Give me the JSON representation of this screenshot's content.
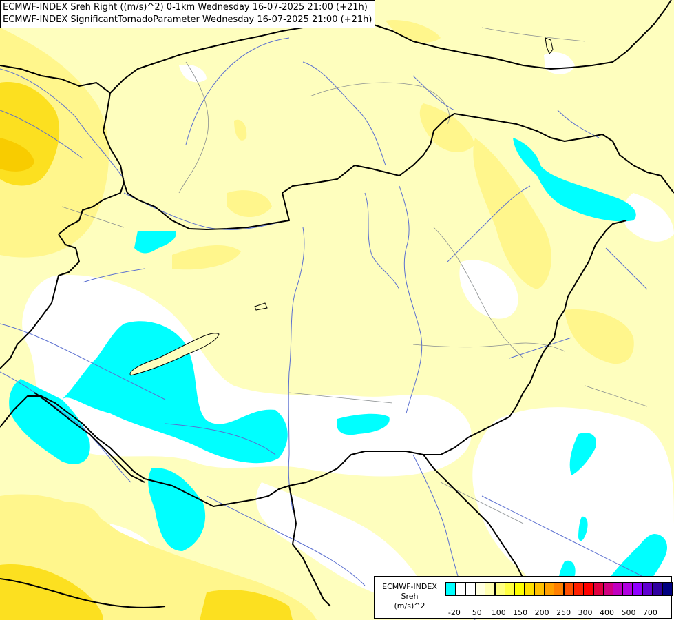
{
  "title_lines": [
    "ECMWF-INDEX Sreh Right ((m/s)^2) 0-1km Wednesday 16-07-2025 21:00 (+21h)",
    "ECMWF-INDEX SignificantTornadoParameter Wednesday 16-07-2025 21:00 (+21h)"
  ],
  "legend": {
    "title_lines": [
      "ECMWF-INDEX",
      "Sreh",
      "(m/s)^2"
    ],
    "swatch_colors": [
      "#00ffff",
      "#ffffff",
      "#ffffff",
      "#ffffe0",
      "#ffffb0",
      "#ffff80",
      "#ffff40",
      "#ffff00",
      "#ffe000",
      "#ffc000",
      "#ffa000",
      "#ff8000",
      "#ff5000",
      "#ff2000",
      "#ff0000",
      "#e00040",
      "#d00080",
      "#c000c0",
      "#b000e0",
      "#9000ff",
      "#6000d0",
      "#3000a0",
      "#000080"
    ],
    "tick_labels": [
      "-20",
      "50",
      "100",
      "150",
      "200",
      "250",
      "300",
      "400",
      "500",
      "700"
    ]
  },
  "colors": {
    "land": "#fefebe",
    "cyan_field": "#00ffff",
    "white_field": "#ffffff",
    "yellow_field": "#fff68c",
    "gold_field": "#fce020",
    "borders": "#000000",
    "rivers": "#5a6fd0"
  }
}
